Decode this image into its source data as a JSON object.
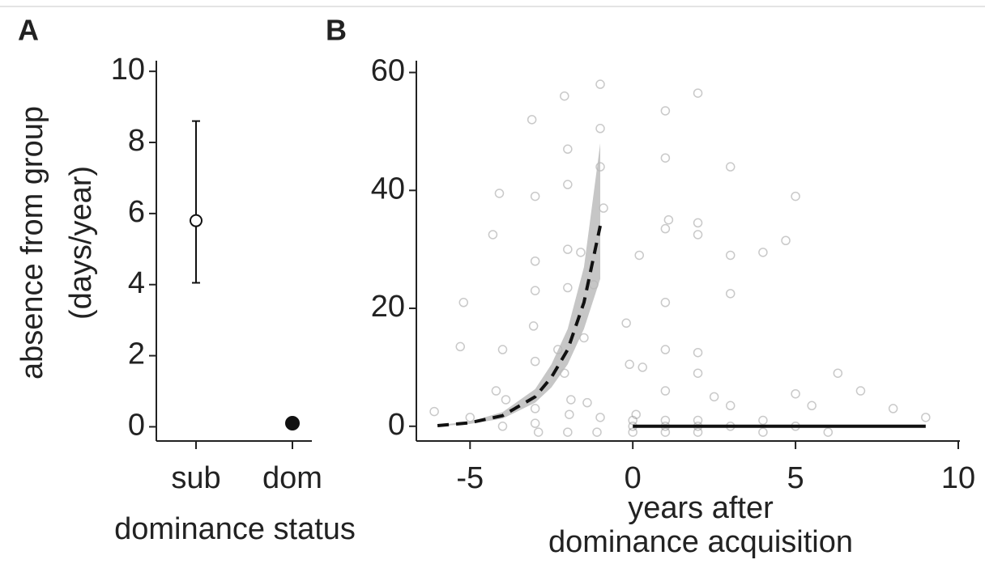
{
  "chart_data": [
    {
      "type": "errorbar",
      "label": "A",
      "categories": [
        "sub",
        "dom"
      ],
      "values": [
        5.8,
        0.1
      ],
      "lower": [
        4.05,
        null
      ],
      "upper": [
        8.6,
        null
      ],
      "markers": [
        "open",
        "filled"
      ],
      "color": "#111111",
      "ylim": [
        -0.4,
        10.3
      ],
      "yticks": [
        0,
        2,
        4,
        6,
        8,
        10
      ],
      "ylabel": [
        "absence from group",
        "(days/year)"
      ],
      "xlabel": "dominance status"
    },
    {
      "type": "scatter",
      "label": "B",
      "x": [
        -6.1,
        -5.2,
        -5,
        -5.3,
        -4.3,
        -4.1,
        -4,
        -4,
        -4.2,
        -3.9,
        -3.1,
        -3,
        -3,
        -3,
        -3.05,
        -3,
        -3,
        -2.9,
        -3,
        -2.3,
        -2.1,
        -2,
        -2,
        -2,
        -2,
        -1.9,
        -2,
        -1.95,
        -2.1,
        -1.6,
        -1.5,
        -1.4,
        -1.2,
        -1,
        -1,
        -1,
        -0.9,
        -1,
        -1.1,
        -0.2,
        -0.1,
        0,
        0,
        0,
        0.1,
        0.2,
        0.3,
        1,
        1,
        1.1,
        1,
        1,
        1,
        1,
        1,
        1,
        1,
        2,
        2,
        2,
        2,
        2,
        2,
        2,
        2,
        2.5,
        3,
        3,
        3,
        3,
        3,
        4,
        4,
        4,
        4.7,
        5,
        5,
        5,
        5.5,
        6,
        6.3,
        7,
        8,
        9
      ],
      "y": [
        2.5,
        21,
        1.5,
        13.5,
        32.5,
        39.5,
        13,
        0,
        6,
        4.5,
        52,
        39,
        28,
        23,
        17,
        11,
        3,
        -1,
        0.5,
        13,
        56,
        47,
        41,
        30,
        23.5,
        4.5,
        -1,
        2,
        9,
        29.5,
        15,
        4,
        24,
        58,
        50.5,
        44,
        37,
        1.5,
        -1,
        17.5,
        10.5,
        0,
        1,
        -1,
        2,
        29,
        10,
        53.5,
        45.5,
        35,
        33.5,
        21,
        13,
        6,
        0,
        1,
        -1,
        56.5,
        34.5,
        32.5,
        12.5,
        9,
        0,
        -1,
        1,
        5,
        44,
        29,
        22.5,
        3.5,
        0,
        29.5,
        1,
        -1,
        31.5,
        39,
        5.5,
        0,
        3.5,
        -1,
        9,
        6,
        3,
        1.5
      ],
      "point_color": "#888888",
      "curves": [
        {
          "style": "dashed",
          "color": "#111111",
          "band_color": "#b8b8b8",
          "x": [
            -6,
            -5,
            -4,
            -3,
            -2.5,
            -2,
            -1.5,
            -1
          ],
          "y": [
            0.1,
            0.6,
            1.8,
            5,
            8.3,
            13,
            21,
            34
          ],
          "lower": [
            0,
            0.4,
            1.3,
            4,
            6.6,
            10.5,
            16.5,
            25
          ],
          "upper": [
            0.2,
            0.8,
            2.4,
            6.3,
            10.5,
            16.5,
            27,
            48
          ]
        },
        {
          "style": "solid",
          "color": "#111111",
          "x": [
            0,
            9
          ],
          "y": [
            0,
            0
          ]
        }
      ],
      "xlim": [
        -6.65,
        10.05
      ],
      "ylim": [
        -2.5,
        62
      ],
      "xticks": [
        -5,
        0,
        5,
        10
      ],
      "yticks": [
        0,
        20,
        40,
        60
      ],
      "xlabel": [
        "years after",
        "dominance acquisition"
      ]
    }
  ]
}
